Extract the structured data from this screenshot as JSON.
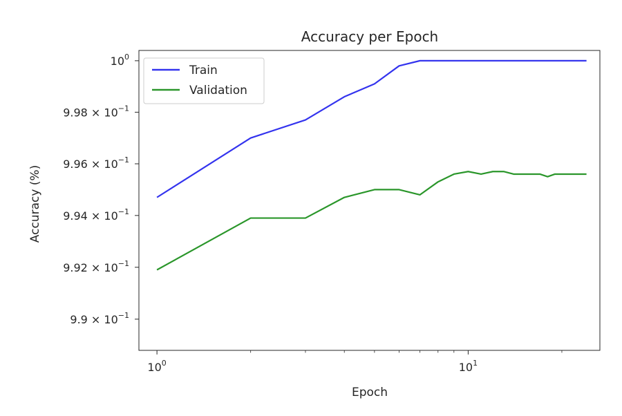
{
  "chart_data": {
    "type": "line",
    "title": "Accuracy per Epoch",
    "xlabel": "Epoch",
    "ylabel": "Accuracy (%)",
    "x_scale": "log",
    "y_scale": "log",
    "xlim": [
      0.875,
      26.5
    ],
    "ylim": [
      0.9888,
      1.0004
    ],
    "x_ticks": [
      {
        "value": 1,
        "base": "10",
        "exp": "0"
      },
      {
        "value": 10,
        "base": "10",
        "exp": "1"
      }
    ],
    "y_ticks": [
      {
        "value": 0.99,
        "mantissa": "9.9",
        "times": "×",
        "base": "10",
        "exp": "−1"
      },
      {
        "value": 0.992,
        "mantissa": "9.92",
        "times": "×",
        "base": "10",
        "exp": "−1"
      },
      {
        "value": 0.994,
        "mantissa": "9.94",
        "times": "×",
        "base": "10",
        "exp": "−1"
      },
      {
        "value": 0.996,
        "mantissa": "9.96",
        "times": "×",
        "base": "10",
        "exp": "−1"
      },
      {
        "value": 0.998,
        "mantissa": "9.98",
        "times": "×",
        "base": "10",
        "exp": "−1"
      },
      {
        "value": 1.0,
        "mantissa": "",
        "times": "",
        "base": "10",
        "exp": "0"
      }
    ],
    "grid": false,
    "legend_position": "top-left",
    "x": [
      1,
      2,
      3,
      4,
      5,
      6,
      7,
      8,
      9,
      10,
      11,
      12,
      13,
      14,
      15,
      16,
      17,
      18,
      19,
      20,
      21,
      22,
      23,
      24
    ],
    "series": [
      {
        "name": "Train",
        "color": "#3333ee",
        "values": [
          0.9947,
          0.997,
          0.9977,
          0.9986,
          0.9991,
          0.9998,
          1.0,
          1.0,
          1.0,
          1.0,
          1.0,
          1.0,
          1.0,
          1.0,
          1.0,
          1.0,
          1.0,
          1.0,
          1.0,
          1.0,
          1.0,
          1.0,
          1.0,
          1.0
        ]
      },
      {
        "name": "Validation",
        "color": "#2a962a",
        "values": [
          0.9919,
          0.9939,
          0.9939,
          0.9947,
          0.995,
          0.995,
          0.9948,
          0.9953,
          0.9956,
          0.9957,
          0.9956,
          0.9957,
          0.9957,
          0.9956,
          0.9956,
          0.9956,
          0.9956,
          0.9955,
          0.9956,
          0.9956,
          0.9956,
          0.9956,
          0.9956,
          0.9956
        ]
      }
    ]
  }
}
